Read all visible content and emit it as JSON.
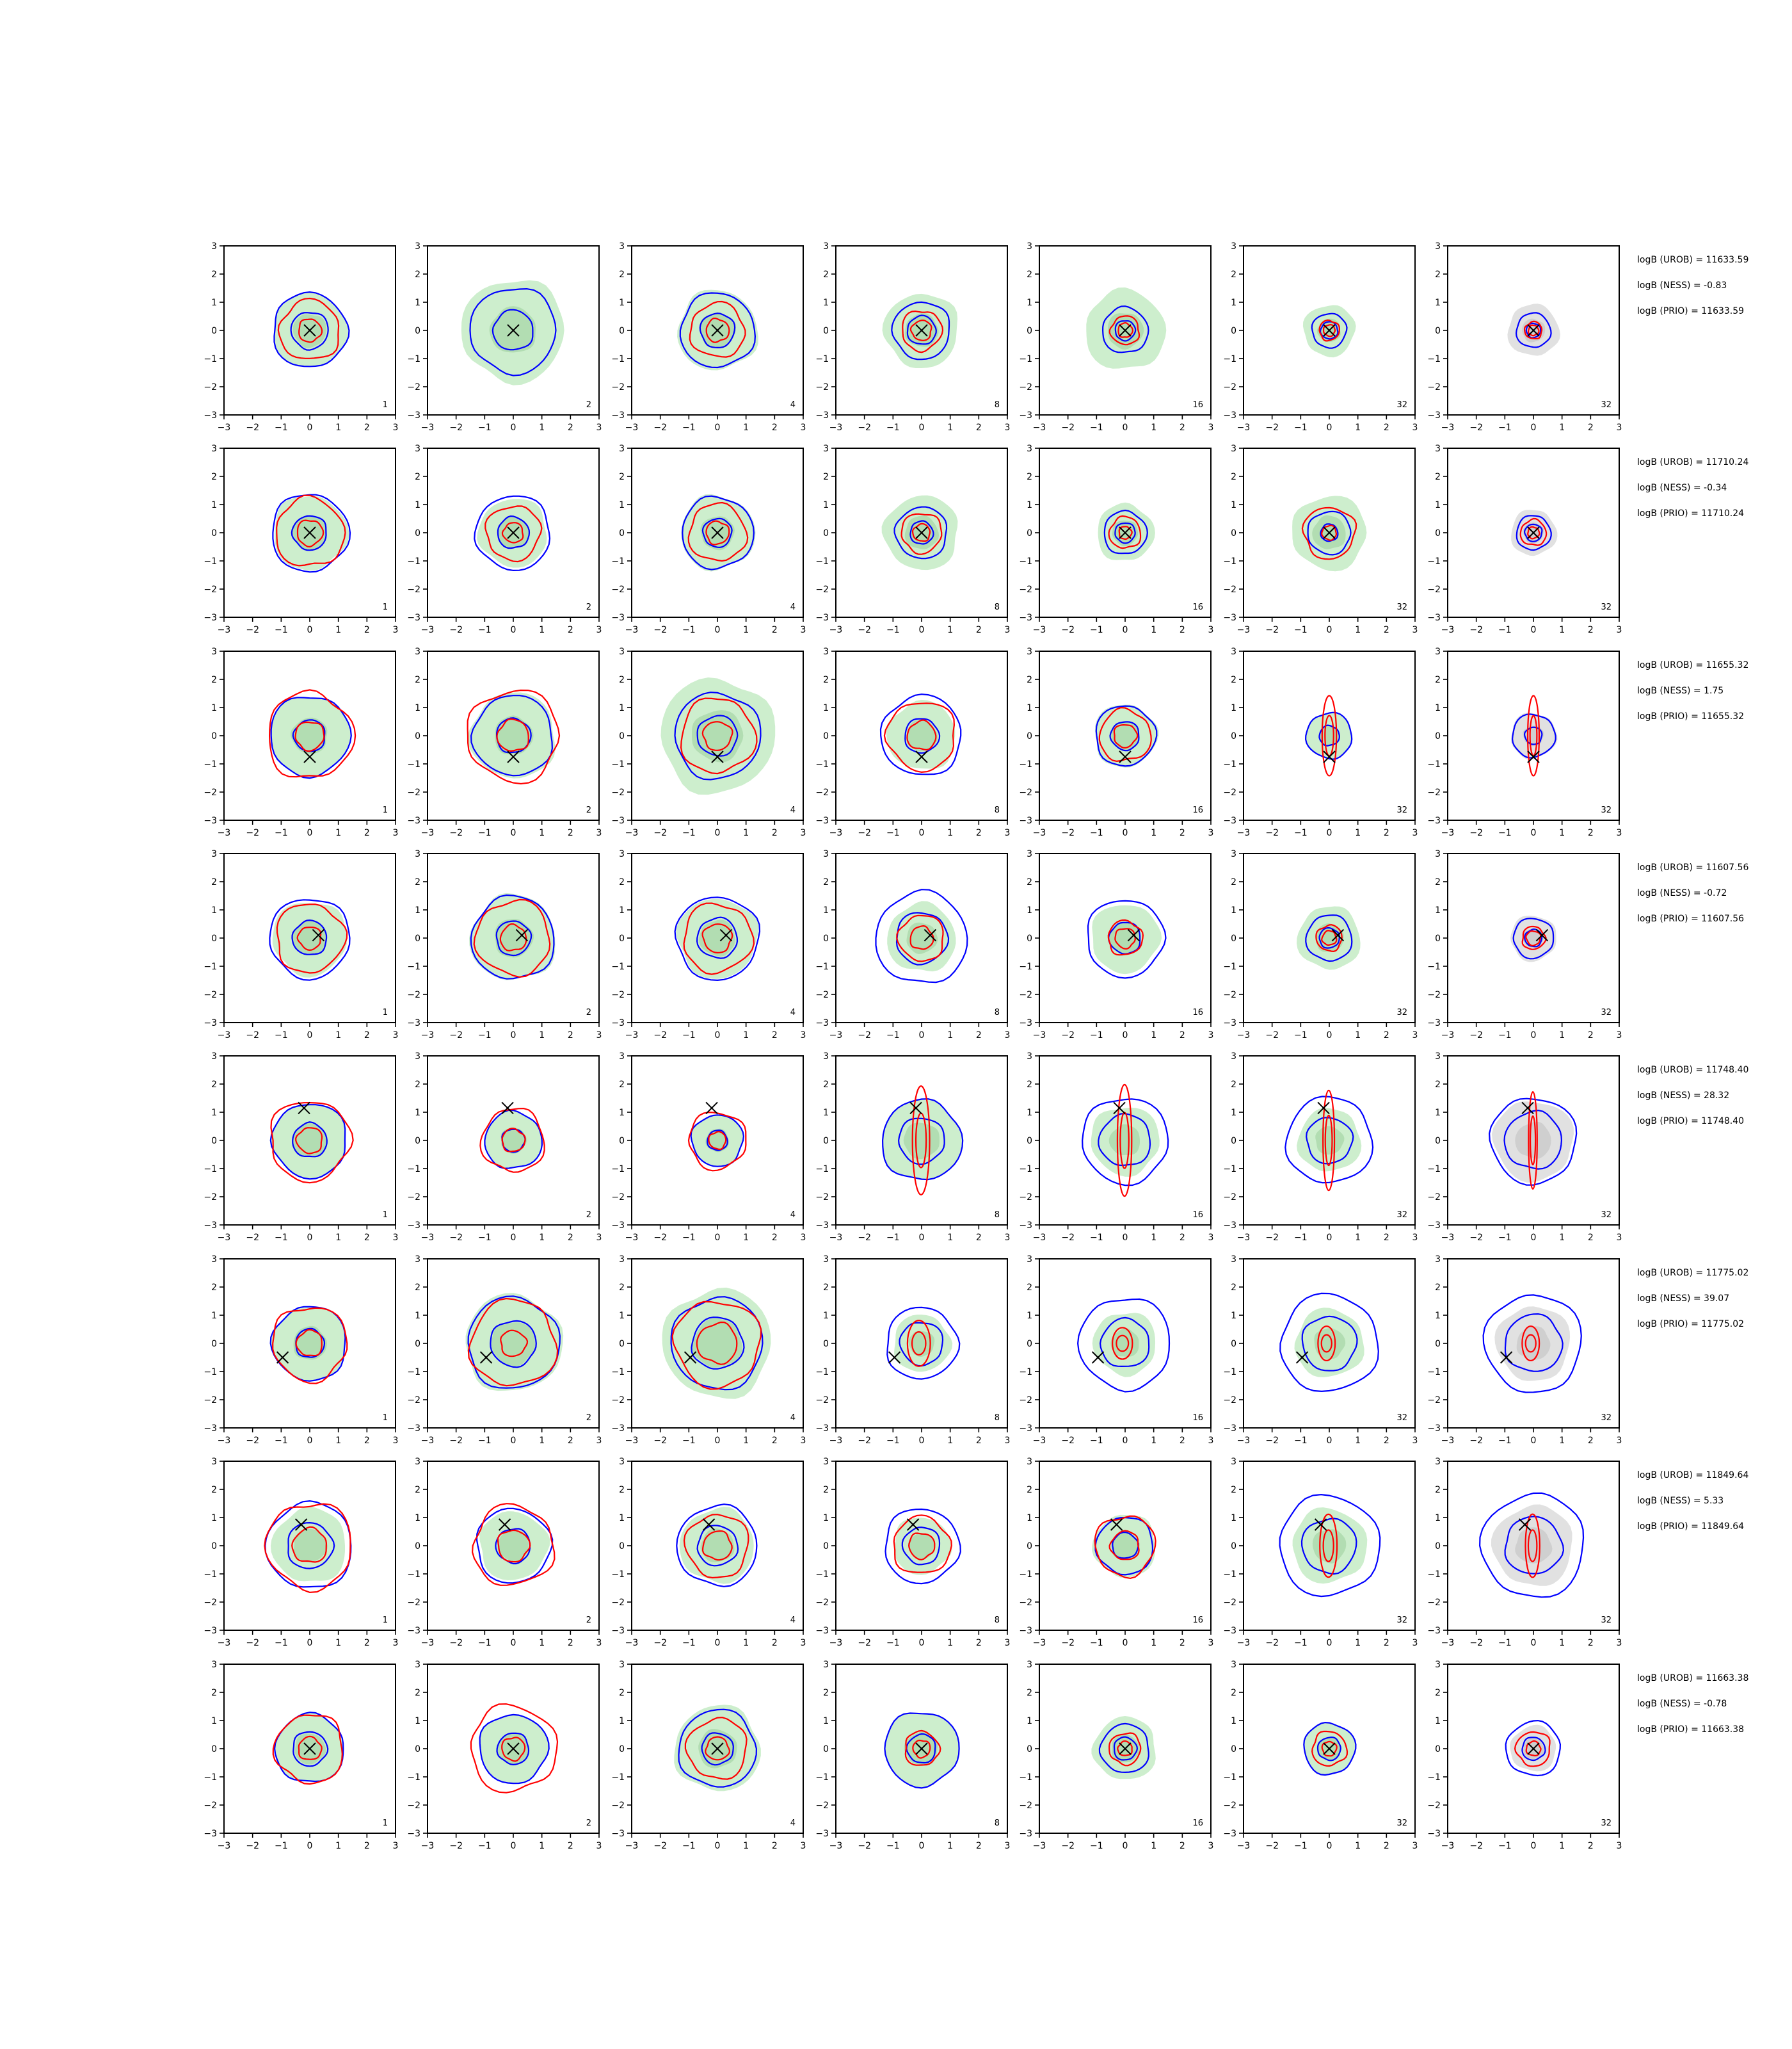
{
  "chart_data": {
    "type": "contour-grid",
    "rows": 8,
    "columns": 7,
    "xlim": [
      -3,
      3
    ],
    "ylim": [
      -3,
      3
    ],
    "ticks": [
      -3,
      -2,
      -1,
      0,
      1,
      2,
      3
    ],
    "tick_labels": [
      "−3",
      "−2",
      "−1",
      "0",
      "1",
      "2",
      "3"
    ],
    "column_labels": [
      "1",
      "2",
      "4",
      "8",
      "16",
      "32",
      "32"
    ],
    "colors": {
      "filled_density": "#cdeecd",
      "filled_density_inner": "#b2ddb2",
      "filled_density_last_column": "#e1e1e1",
      "filled_density_last_column_inner": "#cfcfcf",
      "contour_a": "#0000ff",
      "contour_b": "#ff0000",
      "marker": "#000000"
    },
    "row_data": [
      {
        "marker": [
          0.0,
          0.0
        ],
        "stats": [
          "logB (UROB) = 11633.59",
          "logB (NESS) = -0.83",
          "logB (PRIO) = 11633.59"
        ],
        "blue_radii": [
          [
            1.3,
            0.65
          ],
          [
            1.5,
            0.7
          ],
          [
            1.3,
            0.6
          ],
          [
            1.0,
            0.5
          ],
          [
            0.8,
            0.35
          ],
          [
            0.6,
            0.3
          ],
          [
            0.6,
            0.25
          ]
        ],
        "red_radii": [
          [
            1.05,
            0.4
          ],
          [
            null,
            null
          ],
          [
            0.95,
            0.4
          ],
          [
            0.7,
            0.35
          ],
          [
            0.5,
            0.25
          ],
          [
            0.35,
            0.2
          ],
          [
            0.3,
            0.18
          ]
        ],
        "green_radii": [
          1.3,
          1.8,
          1.4,
          1.3,
          1.4,
          0.9,
          0.9
        ]
      },
      {
        "marker": [
          0.0,
          0.0
        ],
        "stats": [
          "logB (UROB) = 11710.24",
          "logB (NESS) = -0.34",
          "logB (PRIO) = 11710.24"
        ],
        "blue_radii": [
          [
            1.35,
            0.6
          ],
          [
            1.3,
            0.55
          ],
          [
            1.25,
            0.5
          ],
          [
            0.9,
            0.4
          ],
          [
            0.75,
            0.35
          ],
          [
            0.75,
            0.3
          ],
          [
            0.6,
            0.3
          ]
        ],
        "red_radii": [
          [
            1.2,
            0.45
          ],
          [
            0.95,
            0.35
          ],
          [
            1.0,
            0.4
          ],
          [
            0.7,
            0.3
          ],
          [
            0.55,
            0.22
          ],
          [
            0.9,
            0.25
          ],
          [
            0.45,
            0.2
          ]
        ],
        "green_radii": [
          1.3,
          1.2,
          1.3,
          1.3,
          1.0,
          1.3,
          0.8
        ]
      },
      {
        "marker": [
          0.0,
          -0.75
        ],
        "stats": [
          "logB (UROB) = 11655.32",
          "logB (NESS) = 1.75",
          "logB (PRIO) = 11655.32"
        ],
        "blue_radii": [
          [
            1.4,
            0.55
          ],
          [
            1.4,
            0.6
          ],
          [
            1.5,
            0.7
          ],
          [
            1.4,
            0.6
          ],
          [
            1.05,
            0.5
          ],
          [
            0.8,
            0.35
          ],
          [
            0.75,
            0.3
          ]
        ],
        "red_radii": [
          [
            1.5,
            0.5
          ],
          [
            1.6,
            0.55
          ],
          [
            1.3,
            0.5
          ],
          [
            1.2,
            0.5
          ],
          [
            0.9,
            0.4
          ],
          [
            0.25,
            1.4
          ],
          [
            0.2,
            1.4
          ]
        ],
        "green_radii": [
          1.4,
          1.5,
          2.0,
          1.2,
          1.1,
          0.8,
          0.8
        ]
      },
      {
        "marker": [
          0.3,
          0.1
        ],
        "stats": [
          "logB (UROB) = 11607.56",
          "logB (NESS) = -0.72",
          "logB (PRIO) = 11607.56"
        ],
        "blue_radii": [
          [
            1.4,
            0.6
          ],
          [
            1.45,
            0.6
          ],
          [
            1.45,
            0.7
          ],
          [
            1.6,
            0.9
          ],
          [
            1.35,
            0.55
          ],
          [
            0.8,
            0.35
          ],
          [
            0.7,
            0.3
          ]
        ],
        "red_radii": [
          [
            1.2,
            0.4
          ],
          [
            1.3,
            0.45
          ],
          [
            1.2,
            0.5
          ],
          [
            0.8,
            0.4
          ],
          [
            0.6,
            0.35
          ],
          [
            0.45,
            0.25
          ],
          [
            0.4,
            0.25
          ]
        ],
        "green_radii": [
          1.3,
          1.5,
          1.4,
          1.2,
          1.2,
          1.1,
          0.8
        ]
      },
      {
        "marker": [
          -0.2,
          1.15
        ],
        "stats": [
          "logB (UROB) = 11748.40",
          "logB (NESS) = 28.32",
          "logB (PRIO) = 11748.40"
        ],
        "blue_radii": [
          [
            1.3,
            0.6
          ],
          [
            1.0,
            0.4
          ],
          [
            0.9,
            0.35
          ],
          [
            1.4,
            0.8
          ],
          [
            1.5,
            0.9
          ],
          [
            1.5,
            0.8
          ],
          [
            1.5,
            1.0
          ]
        ],
        "red_radii": [
          [
            1.4,
            0.45
          ],
          [
            1.1,
            0.4
          ],
          [
            1.0,
            0.3
          ],
          [
            0.3,
            1.9
          ],
          [
            0.25,
            1.95
          ],
          [
            0.2,
            1.75
          ],
          [
            0.15,
            1.7
          ]
        ],
        "green_radii": [
          1.3,
          1.0,
          0.9,
          1.4,
          1.2,
          1.1,
          1.4
        ]
      },
      {
        "marker": [
          -0.95,
          -0.5
        ],
        "stats": [
          "logB (UROB) = 11775.02",
          "logB (NESS) = 39.07",
          "logB (PRIO) = 11775.02"
        ],
        "blue_radii": [
          [
            1.3,
            0.5
          ],
          [
            1.6,
            0.8
          ],
          [
            1.6,
            0.9
          ],
          [
            1.25,
            0.75
          ],
          [
            1.6,
            0.85
          ],
          [
            1.7,
            0.95
          ],
          [
            1.7,
            1.0
          ]
        ],
        "red_radii": [
          [
            1.3,
            0.45
          ],
          [
            1.5,
            0.45
          ],
          [
            1.5,
            0.7
          ],
          [
            0.4,
            0.8
          ],
          [
            0.35,
            0.55
          ],
          [
            0.3,
            0.6
          ],
          [
            0.3,
            0.6
          ]
        ],
        "green_radii": [
          1.3,
          1.7,
          1.9,
          1.0,
          1.1,
          1.2,
          1.3
        ]
      },
      {
        "marker": [
          -0.3,
          0.75
        ],
        "stats": [
          "logB (UROB) = 11849.64",
          "logB (NESS) = 5.33",
          "logB (PRIO) = 11849.64"
        ],
        "blue_radii": [
          [
            1.5,
            0.8
          ],
          [
            1.3,
            0.6
          ],
          [
            1.4,
            0.7
          ],
          [
            1.3,
            0.65
          ],
          [
            1.0,
            0.45
          ],
          [
            1.75,
            0.95
          ],
          [
            1.8,
            1.0
          ]
        ],
        "red_radii": [
          [
            1.5,
            0.6
          ],
          [
            1.4,
            0.55
          ],
          [
            1.1,
            0.5
          ],
          [
            1.0,
            0.45
          ],
          [
            1.05,
            0.5
          ],
          [
            0.3,
            1.1
          ],
          [
            0.25,
            1.1
          ]
        ],
        "green_radii": [
          1.3,
          1.2,
          1.3,
          1.0,
          1.1,
          1.3,
          1.4
        ]
      },
      {
        "marker": [
          0.0,
          0.0
        ],
        "stats": [
          "logB (UROB) = 11663.38",
          "logB (NESS) = -0.78",
          "logB (PRIO) = 11663.38"
        ],
        "blue_radii": [
          [
            1.2,
            0.6
          ],
          [
            1.2,
            0.55
          ],
          [
            1.35,
            0.55
          ],
          [
            1.3,
            0.5
          ],
          [
            0.85,
            0.4
          ],
          [
            0.9,
            0.4
          ],
          [
            0.95,
            0.4
          ]
        ],
        "red_radii": [
          [
            1.2,
            0.4
          ],
          [
            1.5,
            0.4
          ],
          [
            1.05,
            0.4
          ],
          [
            0.6,
            0.3
          ],
          [
            0.55,
            0.25
          ],
          [
            0.6,
            0.25
          ],
          [
            0.6,
            0.25
          ]
        ],
        "green_radii": [
          1.2,
          1.2,
          1.5,
          1.3,
          1.1,
          0.9,
          0.8
        ]
      }
    ]
  }
}
